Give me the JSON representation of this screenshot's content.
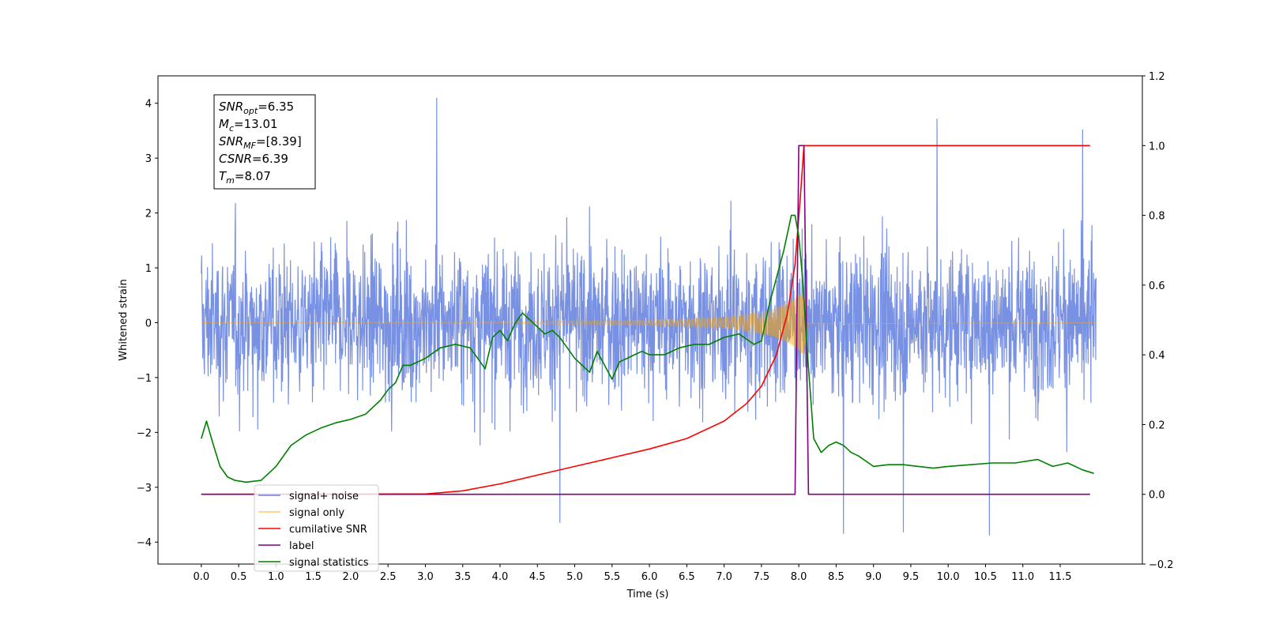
{
  "chart_data": {
    "type": "line",
    "xlabel": "Time (s)",
    "ylabel": "Whitened strain",
    "xlim": [
      -0.58,
      12.6
    ],
    "ylim": [
      -4.4,
      4.5
    ],
    "ylim_right": [
      -0.2,
      1.2
    ],
    "xticks": [
      "0.0",
      "0.5",
      "1.0",
      "1.5",
      "2.0",
      "2.5",
      "3.0",
      "3.5",
      "4.0",
      "4.5",
      "5.0",
      "5.5",
      "6.0",
      "6.5",
      "7.0",
      "7.5",
      "8.0",
      "8.5",
      "9.0",
      "9.5",
      "10.0",
      "10.5",
      "11.0",
      "11.5"
    ],
    "yticks_left": [
      "4",
      "3",
      "2",
      "1",
      "0",
      "−1",
      "−2",
      "−3",
      "−4"
    ],
    "yticks_right": [
      "1.2",
      "1.0",
      "0.8",
      "0.6",
      "0.4",
      "0.2",
      "0.0",
      "−0.2"
    ],
    "annotation": {
      "lines": [
        {
          "var": "SNR",
          "sub": "opt",
          "value": "=6.35"
        },
        {
          "var": "M",
          "sub": "c",
          "value": "=13.01"
        },
        {
          "var": "SNR",
          "sub": "MF",
          "value": "=[8.39]"
        },
        {
          "var": "CSNR",
          "sub": "",
          "value": "=6.39"
        },
        {
          "var": "T",
          "sub": "m",
          "value": "=8.07"
        }
      ]
    },
    "legend": {
      "placement": "lower-left",
      "entries": [
        {
          "label": "signal+ noise",
          "color": "#6a85e0"
        },
        {
          "label": "signal only",
          "color": "#ffa500"
        },
        {
          "label": "cumilative SNR",
          "color": "#ff0000"
        },
        {
          "label": "label",
          "color": "#800080"
        },
        {
          "label": "signal statistics",
          "color": "#008000"
        }
      ]
    },
    "series": [
      {
        "name": "signal+ noise",
        "axis": "left",
        "color": "#6a85e0",
        "style": "noise band, approx. ±2.3 typical with spikes to ±4.1",
        "peaks": [
          [
            3.15,
            4.1
          ],
          [
            9.85,
            3.72
          ],
          [
            11.8,
            3.52
          ],
          [
            4.8,
            -3.65
          ],
          [
            10.55,
            -3.88
          ],
          [
            8.6,
            -3.85
          ],
          [
            9.4,
            -3.82
          ]
        ]
      },
      {
        "name": "signal only",
        "axis": "left",
        "color": "#ffa500",
        "style": "chirp, amplitude grows toward merger at 8.07",
        "envelope": {
          "t": [
            0,
            2,
            4,
            5,
            6,
            6.5,
            7,
            7.3,
            7.6,
            7.8,
            7.95,
            8.07,
            8.12,
            12
          ],
          "amp": [
            0.004,
            0.01,
            0.02,
            0.03,
            0.05,
            0.07,
            0.1,
            0.15,
            0.23,
            0.33,
            0.45,
            0.6,
            0.02,
            0.003
          ]
        }
      },
      {
        "name": "cumilative SNR",
        "axis": "right",
        "color": "#ff0000",
        "x": [
          0,
          3.0,
          3.5,
          4.0,
          4.5,
          5.0,
          5.5,
          6.0,
          6.5,
          7.0,
          7.3,
          7.5,
          7.7,
          7.85,
          7.95,
          8.02,
          8.07,
          11.9
        ],
        "y": [
          0.0,
          0.001,
          0.01,
          0.03,
          0.055,
          0.08,
          0.105,
          0.13,
          0.16,
          0.21,
          0.26,
          0.31,
          0.4,
          0.52,
          0.66,
          0.85,
          1.0,
          1.0
        ]
      },
      {
        "name": "label",
        "axis": "right",
        "color": "#800080",
        "x": [
          0,
          7.95,
          8.0,
          8.07,
          8.13,
          11.9
        ],
        "y": [
          0,
          0,
          1,
          1,
          0,
          0
        ]
      },
      {
        "name": "signal statistics",
        "axis": "right",
        "color": "#008000",
        "x": [
          0,
          0.07,
          0.15,
          0.25,
          0.35,
          0.45,
          0.6,
          0.8,
          1.0,
          1.2,
          1.4,
          1.6,
          1.8,
          2.0,
          2.2,
          2.4,
          2.5,
          2.6,
          2.7,
          2.8,
          3.0,
          3.2,
          3.4,
          3.6,
          3.7,
          3.8,
          3.9,
          4.0,
          4.1,
          4.2,
          4.3,
          4.4,
          4.5,
          4.6,
          4.7,
          4.8,
          4.9,
          5.0,
          5.2,
          5.3,
          5.4,
          5.5,
          5.6,
          5.7,
          5.8,
          5.9,
          6.0,
          6.2,
          6.4,
          6.6,
          6.8,
          7.0,
          7.2,
          7.4,
          7.5,
          7.6,
          7.7,
          7.8,
          7.9,
          7.95,
          8.0,
          8.05,
          8.1,
          8.2,
          8.3,
          8.4,
          8.5,
          8.6,
          8.7,
          8.8,
          9.0,
          9.2,
          9.4,
          9.6,
          9.8,
          10.0,
          10.3,
          10.6,
          10.9,
          11.2,
          11.4,
          11.6,
          11.8,
          11.95
        ],
        "y": [
          0.16,
          0.21,
          0.15,
          0.08,
          0.05,
          0.04,
          0.035,
          0.04,
          0.08,
          0.14,
          0.17,
          0.19,
          0.205,
          0.215,
          0.23,
          0.27,
          0.3,
          0.32,
          0.37,
          0.37,
          0.39,
          0.42,
          0.43,
          0.42,
          0.39,
          0.36,
          0.45,
          0.47,
          0.44,
          0.49,
          0.52,
          0.5,
          0.48,
          0.46,
          0.47,
          0.45,
          0.42,
          0.39,
          0.35,
          0.41,
          0.37,
          0.33,
          0.38,
          0.39,
          0.4,
          0.41,
          0.4,
          0.4,
          0.42,
          0.43,
          0.43,
          0.45,
          0.46,
          0.43,
          0.44,
          0.54,
          0.62,
          0.7,
          0.8,
          0.8,
          0.74,
          0.62,
          0.45,
          0.16,
          0.12,
          0.14,
          0.15,
          0.14,
          0.12,
          0.11,
          0.08,
          0.085,
          0.085,
          0.08,
          0.075,
          0.08,
          0.085,
          0.09,
          0.09,
          0.1,
          0.08,
          0.09,
          0.07,
          0.06
        ]
      }
    ]
  }
}
